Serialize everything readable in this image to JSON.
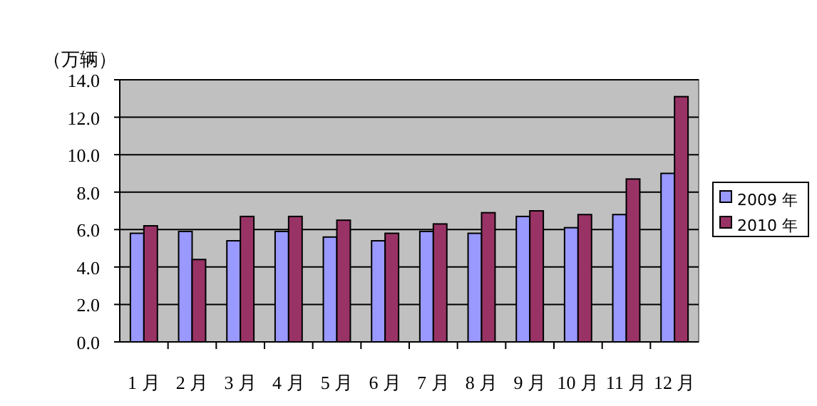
{
  "chart_data": {
    "type": "bar",
    "ylabel": "（万辆）",
    "categories": [
      "1 月",
      "2 月",
      "3 月",
      "4 月",
      "5 月",
      "6 月",
      "7 月",
      "8 月",
      "9 月",
      "10 月",
      "11 月",
      "12 月"
    ],
    "series": [
      {
        "name": "2009 年",
        "color": "#9999ff",
        "values": [
          5.8,
          5.9,
          5.4,
          5.9,
          5.6,
          5.4,
          5.9,
          5.8,
          6.7,
          6.1,
          6.8,
          9.0
        ]
      },
      {
        "name": "2010 年",
        "color": "#993366",
        "values": [
          6.2,
          4.4,
          6.7,
          6.7,
          6.5,
          5.8,
          6.3,
          6.9,
          7.0,
          6.8,
          8.7,
          13.1
        ]
      }
    ],
    "ylim": [
      0,
      14
    ],
    "yticks": [
      {
        "value": 0,
        "label": "0.0"
      },
      {
        "value": 2,
        "label": "2.0"
      },
      {
        "value": 4,
        "label": "4.0"
      },
      {
        "value": 6,
        "label": "6.0"
      },
      {
        "value": 8,
        "label": "8.0"
      },
      {
        "value": 10,
        "label": "10.0"
      },
      {
        "value": 12,
        "label": "12.0"
      },
      {
        "value": 14,
        "label": "14.0"
      }
    ],
    "grid": "y",
    "legend": "right"
  }
}
